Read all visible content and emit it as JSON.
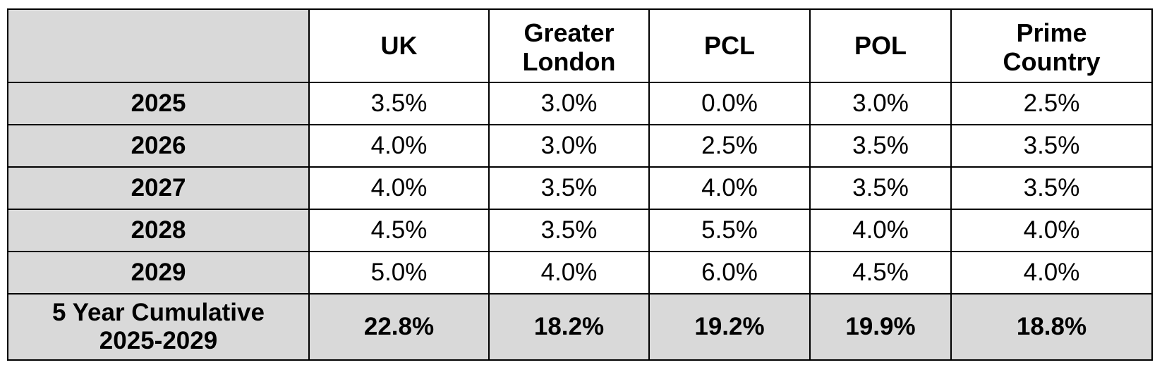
{
  "table": {
    "columns": [
      "UK",
      "Greater London",
      "PCL",
      "POL",
      "Prime Country"
    ],
    "column_lines": [
      [
        "UK"
      ],
      [
        "Greater",
        "London"
      ],
      [
        "PCL"
      ],
      [
        "POL"
      ],
      [
        "Prime",
        "Country"
      ]
    ],
    "rows": [
      {
        "label": "2025",
        "values": [
          "3.5%",
          "3.0%",
          "0.0%",
          "3.0%",
          "2.5%"
        ]
      },
      {
        "label": "2026",
        "values": [
          "4.0%",
          "3.0%",
          "2.5%",
          "3.5%",
          "3.5%"
        ]
      },
      {
        "label": "2027",
        "values": [
          "4.0%",
          "3.5%",
          "4.0%",
          "3.5%",
          "3.5%"
        ]
      },
      {
        "label": "2028",
        "values": [
          "4.5%",
          "3.5%",
          "5.5%",
          "4.0%",
          "4.0%"
        ]
      },
      {
        "label": "2029",
        "values": [
          "5.0%",
          "4.0%",
          "6.0%",
          "4.5%",
          "4.0%"
        ]
      }
    ],
    "total": {
      "label_lines": [
        "5 Year Cumulative",
        "2025-2029"
      ],
      "values": [
        "22.8%",
        "18.2%",
        "19.2%",
        "19.9%",
        "18.8%"
      ]
    }
  },
  "colors": {
    "label_background": "#d9d9d9",
    "cell_background": "#ffffff",
    "border": "#000000",
    "text": "#000000"
  }
}
